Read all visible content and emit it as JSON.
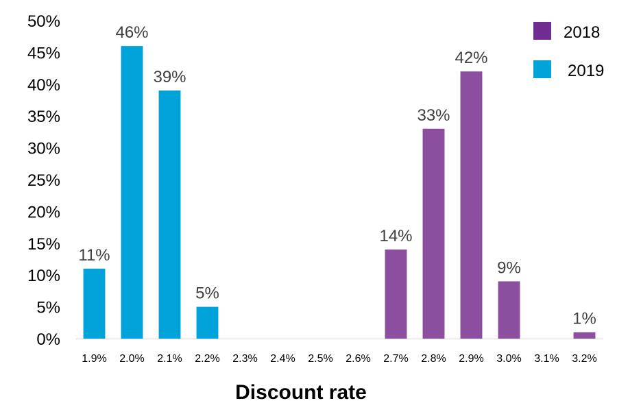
{
  "chart_data": {
    "type": "bar",
    "xlabel": "Discount rate",
    "ylabel": "",
    "title": "",
    "ylim": [
      0,
      50
    ],
    "y_ticks": [
      "0%",
      "5%",
      "10%",
      "15%",
      "20%",
      "25%",
      "30%",
      "35%",
      "40%",
      "45%",
      "50%"
    ],
    "categories": [
      "1.9%",
      "2.0%",
      "2.1%",
      "2.2%",
      "2.3%",
      "2.4%",
      "2.5%",
      "2.6%",
      "2.7%",
      "2.8%",
      "2.9%",
      "3.0%",
      "3.1%",
      "3.2%"
    ],
    "series": [
      {
        "name": "2018",
        "color": "#8c4f9f",
        "legend_color": "#6f2c91",
        "values": [
          null,
          null,
          null,
          null,
          null,
          null,
          null,
          null,
          14,
          33,
          42,
          9,
          null,
          1
        ],
        "labels": [
          "",
          "",
          "",
          "",
          "",
          "",
          "",
          "",
          "14%",
          "33%",
          "42%",
          "9%",
          "",
          "1%"
        ]
      },
      {
        "name": "2019",
        "color": "#00a3d9",
        "legend_color": "#00a3d9",
        "values": [
          11,
          46,
          39,
          5,
          null,
          null,
          null,
          null,
          null,
          null,
          null,
          null,
          null,
          null
        ],
        "labels": [
          "11%",
          "46%",
          "39%",
          "5%",
          "",
          "",
          "",
          "",
          "",
          "",
          "",
          "",
          "",
          ""
        ]
      }
    ],
    "grid": false,
    "legend_position": "top-right"
  }
}
